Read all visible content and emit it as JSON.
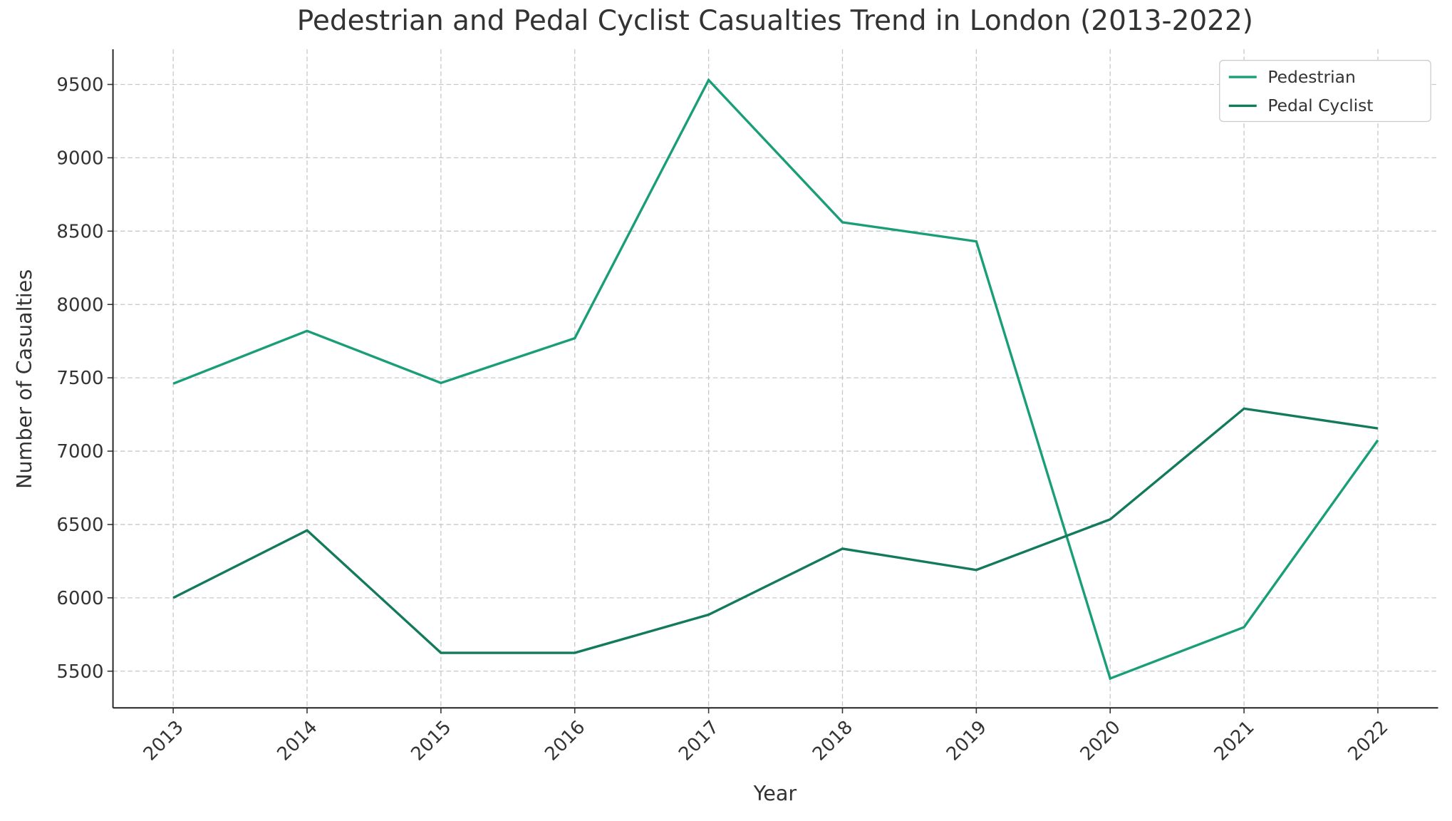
{
  "chart_data": {
    "type": "line",
    "title": "Pedestrian and Pedal Cyclist Casualties Trend in London (2013-2022)",
    "x_label": "Year",
    "y_label": "Number of Casualties",
    "x": [
      2013,
      2014,
      2015,
      2016,
      2017,
      2018,
      2019,
      2020,
      2021,
      2022
    ],
    "series": [
      {
        "name": "Pedestrian",
        "color": "#1a9e77",
        "values": [
          7460,
          7820,
          7465,
          7770,
          9530,
          8560,
          8430,
          5450,
          5800,
          7075
        ]
      },
      {
        "name": "Pedal Cyclist",
        "color": "#137a5c",
        "values": [
          6000,
          6460,
          5625,
          5625,
          5885,
          6335,
          6190,
          6535,
          7290,
          7155
        ]
      }
    ],
    "xlim": [
      2012.55,
      2022.45
    ],
    "xticks": [
      2013,
      2014,
      2015,
      2016,
      2017,
      2018,
      2019,
      2020,
      2021,
      2022
    ],
    "ylim": [
      5250,
      9740
    ],
    "yticks": [
      5500,
      6000,
      6500,
      7000,
      7500,
      8000,
      8500,
      9000,
      9500
    ],
    "grid": true,
    "legend": "upper right"
  }
}
